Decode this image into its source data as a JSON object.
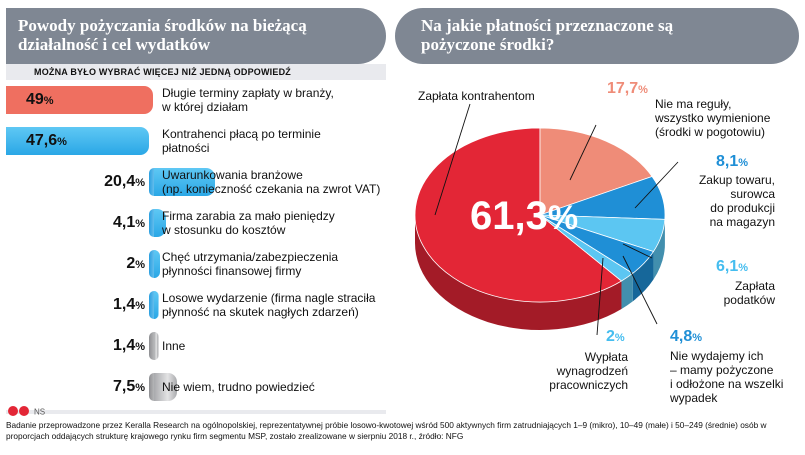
{
  "left_panel": {
    "title_line1": "Powody pożyczania środków na bieżącą",
    "title_line2": "działalność i cel wydatków",
    "subtitle": "MOŻNA BYŁO WYBRAĆ WIĘCEJ NIŻ JEDNĄ ODPOWIEDŹ"
  },
  "right_panel": {
    "title_line1": "Na jakie płatności przeznaczone są",
    "title_line2": "pożyczone środki?"
  },
  "source_logo": {
    "brand_text": "NS"
  },
  "footnote": "Badanie przeprowadzone przez Keralla Research na ogólnopolskiej, reprezentatywnej próbie losowo-kwotowej wśród 500 aktywnych firm zatrudniających 1–9 (mikro), 10–49 (małe) i 50–249 (średnie) osób w proporcjach oddających strukturę krajowego rynku firm segmentu MSP, zostało zrealizowane w sierpniu 2018 r., źródło: NFG",
  "colors": {
    "red": "#e32636",
    "salmon": "#ef8c78",
    "blue": "#1f8fd6",
    "light_blue": "#5cc6f2",
    "grey": "#b3b4b6",
    "header": "#7f8793"
  },
  "chart_data": [
    {
      "type": "bar",
      "orientation": "horizontal",
      "unit": "%",
      "categories": [
        "Długie terminy zapłaty w branży, w której działam",
        "Kontrahenci płacą po terminie płatności",
        "Uwarunkowania branżowe (np. konieczność czekania na zwrot VAT)",
        "Firma zarabia za mało pieniędzy w stosunku do kosztów",
        "Chęć utrzymania/zabezpieczenia płynności finansowej firmy",
        "Losowe wydarzenie (firma nagle straciła płynność na skutek nagłych zdarzeń)",
        "Inne",
        "Nie wiem, trudno powiedzieć"
      ],
      "label_lines": [
        [
          "Długie terminy zapłaty w branży,",
          "w której działam"
        ],
        [
          "Kontrahenci płacą po terminie",
          "płatności"
        ],
        [
          "Uwarunkowania branżowe",
          "(np. konieczność czekania na zwrot VAT)"
        ],
        [
          "Firma zarabia za mało pieniędzy",
          "w stosunku do kosztów"
        ],
        [
          "Chęć utrzymania/zabezpieczenia",
          "płynności finansowej firmy"
        ],
        [
          "Losowe wydarzenie (firma nagle straciła",
          "płynność na skutek nagłych zdarzeń)"
        ],
        [
          "Inne"
        ],
        [
          "Nie wiem, trudno powiedzieć"
        ]
      ],
      "values": [
        49,
        47.6,
        20.4,
        4.1,
        2,
        1.4,
        1.4,
        7.5
      ],
      "value_labels": [
        "49",
        "47,6",
        "20,4",
        "4,1",
        "2",
        "1,4",
        "1,4",
        "7,5"
      ],
      "bar_colors": [
        "red",
        "blue",
        "blue",
        "blue",
        "blue",
        "blue",
        "grey",
        "grey"
      ],
      "xlim": [
        0,
        50
      ]
    },
    {
      "type": "pie",
      "unit": "%",
      "slices": [
        {
          "name": "Zapłata kontrahentom",
          "lines": [
            "Zapłata kontrahentom"
          ],
          "value": 61.3,
          "value_label": "61,3",
          "color": "red"
        },
        {
          "name": "Nie ma reguły, wszystko wymienione (środki w pogotowiu)",
          "lines": [
            "Nie ma reguły,",
            "wszystko wymienione",
            "(środki w pogotowiu)"
          ],
          "value": 17.7,
          "value_label": "17,7",
          "color": "salmon"
        },
        {
          "name": "Zakup towaru, surowca do produkcji na magazyn",
          "lines": [
            "Zakup towaru,",
            "surowca",
            "do produkcji",
            "na magazyn"
          ],
          "value": 8.1,
          "value_label": "8,1",
          "color": "blue"
        },
        {
          "name": "Zapłata podatków",
          "lines": [
            "Zapłata",
            "podatków"
          ],
          "value": 6.1,
          "value_label": "6,1",
          "color": "light_blue"
        },
        {
          "name": "Nie wydajemy ich – mamy pożyczone i odłożone na wszelki wypadek",
          "lines": [
            "Nie wydajemy ich",
            "– mamy pożyczone",
            "i odłożone na wszelki",
            "wypadek"
          ],
          "value": 4.8,
          "value_label": "4,8",
          "color": "blue"
        },
        {
          "name": "Wypłata wynagrodzeń pracowniczych",
          "lines": [
            "Wypłata",
            "wynagrodzeń",
            "pracowniczych"
          ],
          "value": 2,
          "value_label": "2",
          "color": "light_blue"
        }
      ]
    }
  ]
}
